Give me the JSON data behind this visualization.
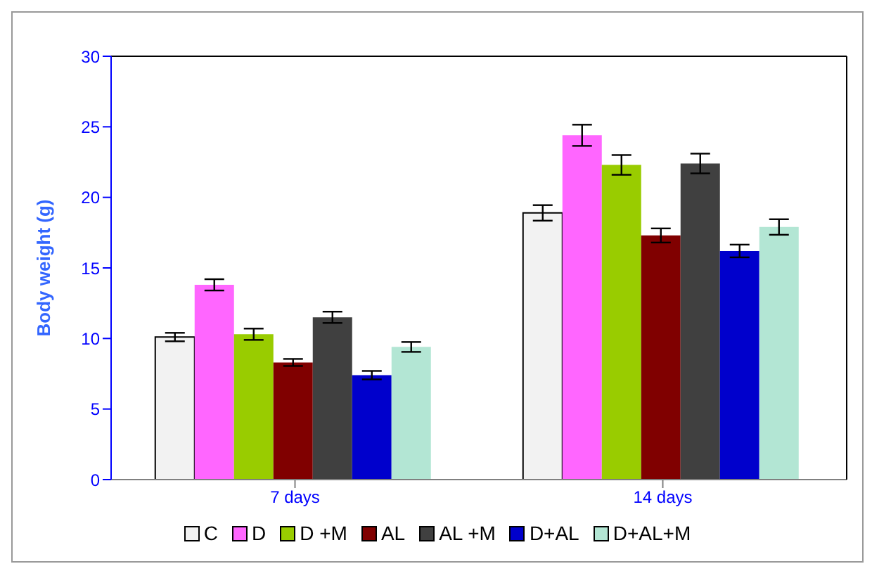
{
  "chart_data": {
    "type": "bar",
    "ylabel": "Body weight (g)",
    "categories": [
      "7 days",
      "14 days"
    ],
    "series": [
      {
        "name": "C",
        "color": "#f2f2f2",
        "values": [
          10.1,
          18.9
        ],
        "errors": [
          0.3,
          0.55
        ]
      },
      {
        "name": "D",
        "color": "#ff66ff",
        "values": [
          13.8,
          24.4
        ],
        "errors": [
          0.4,
          0.75
        ]
      },
      {
        "name": "D +M",
        "color": "#99cc00",
        "values": [
          10.3,
          22.3
        ],
        "errors": [
          0.4,
          0.7
        ]
      },
      {
        "name": "AL",
        "color": "#800000",
        "values": [
          8.3,
          17.3
        ],
        "errors": [
          0.25,
          0.5
        ]
      },
      {
        "name": "AL +M",
        "color": "#404040",
        "values": [
          11.5,
          22.4
        ],
        "errors": [
          0.4,
          0.7
        ]
      },
      {
        "name": "D+AL",
        "color": "#0000cc",
        "values": [
          7.4,
          16.2
        ],
        "errors": [
          0.3,
          0.45
        ]
      },
      {
        "name": "D+AL+M",
        "color": "#b3e6d4",
        "values": [
          9.4,
          17.9
        ],
        "errors": [
          0.35,
          0.55
        ]
      }
    ],
    "ylim": [
      0,
      30
    ],
    "yticks": [
      0,
      5,
      10,
      15,
      20,
      25,
      30
    ],
    "grid": false,
    "legend": "bottom"
  }
}
